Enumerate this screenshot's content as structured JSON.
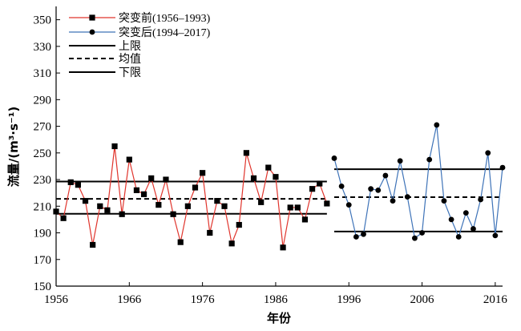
{
  "chart_data": {
    "type": "line",
    "xlabel": "年份",
    "ylabel": "流量/(m³·s⁻¹)",
    "xlim": [
      1956,
      2017
    ],
    "ylim": [
      150,
      360
    ],
    "xticks": [
      1956,
      1966,
      1976,
      1986,
      1996,
      2006,
      2016
    ],
    "yticks": [
      150,
      170,
      190,
      210,
      230,
      250,
      270,
      290,
      310,
      330,
      350
    ],
    "grid": false,
    "legend_position": "top-left",
    "series": [
      {
        "name": "突变前(1956–1993)",
        "color": "#e0342c",
        "marker": "square",
        "x": [
          1956,
          1957,
          1958,
          1959,
          1960,
          1961,
          1962,
          1963,
          1964,
          1965,
          1966,
          1967,
          1968,
          1969,
          1970,
          1971,
          1972,
          1973,
          1974,
          1975,
          1976,
          1977,
          1978,
          1979,
          1980,
          1981,
          1982,
          1983,
          1984,
          1985,
          1986,
          1987,
          1988,
          1989,
          1990,
          1991,
          1992,
          1993
        ],
        "values": [
          206,
          201,
          228,
          226,
          214,
          181,
          210,
          207,
          255,
          204,
          245,
          222,
          219,
          231,
          211,
          230,
          204,
          183,
          210,
          224,
          235,
          190,
          214,
          210,
          182,
          196,
          250,
          231,
          213,
          239,
          232,
          179,
          209,
          209,
          200,
          223,
          227,
          212
        ]
      },
      {
        "name": "突变后(1994–2017)",
        "color": "#3e73b8",
        "marker": "circle",
        "x": [
          1994,
          1995,
          1996,
          1997,
          1998,
          1999,
          2000,
          2001,
          2002,
          2003,
          2004,
          2005,
          2006,
          2007,
          2008,
          2009,
          2010,
          2011,
          2012,
          2013,
          2014,
          2015,
          2016,
          2017
        ],
        "values": [
          246,
          225,
          211,
          187,
          189,
          223,
          222,
          233,
          214,
          244,
          217,
          186,
          190,
          245,
          271,
          214,
          200,
          187,
          205,
          193,
          215,
          250,
          188,
          239
        ]
      }
    ],
    "reference_lines": [
      {
        "label": "上限",
        "style": "solid",
        "segments": [
          {
            "x": [
              1956,
              1993
            ],
            "y": 228.5
          },
          {
            "x": [
              1994,
              2017
            ],
            "y": 237.8
          }
        ]
      },
      {
        "label": "均值",
        "style": "dashed",
        "segments": [
          {
            "x": [
              1956,
              1993
            ],
            "y": 215.5
          },
          {
            "x": [
              1994,
              2017
            ],
            "y": 216.8
          }
        ]
      },
      {
        "label": "下限",
        "style": "solid",
        "segments": [
          {
            "x": [
              1956,
              1993
            ],
            "y": 204.3
          },
          {
            "x": [
              1994,
              2017
            ],
            "y": 191
          }
        ]
      }
    ]
  }
}
